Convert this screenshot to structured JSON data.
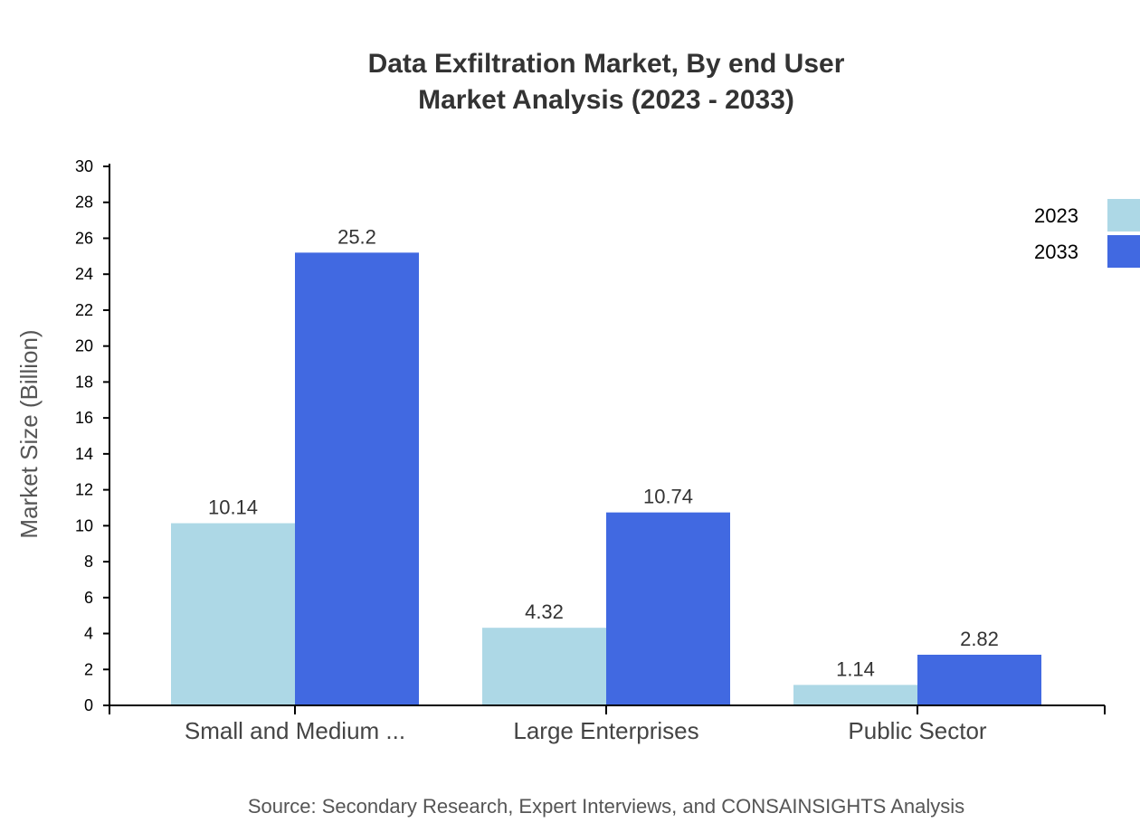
{
  "chart_data": {
    "type": "bar",
    "title": [
      "Data Exfiltration Market, By end User",
      "Market Analysis (2023 - 2033)"
    ],
    "xlabel": "",
    "ylabel": "Market Size (Billion)",
    "ylim": [
      0,
      30
    ],
    "yticks": [
      0,
      2,
      4,
      6,
      8,
      10,
      12,
      14,
      16,
      18,
      20,
      22,
      24,
      26,
      28,
      30
    ],
    "categories": [
      "Small and Medium ...",
      "Large Enterprises",
      "Public Sector"
    ],
    "series": [
      {
        "name": "2023",
        "color": "#ADD8E6",
        "values": [
          10.14,
          4.32,
          1.14
        ]
      },
      {
        "name": "2033",
        "color": "#4169E1",
        "values": [
          25.2,
          10.74,
          2.82
        ]
      }
    ],
    "data_labels": [
      [
        "10.14",
        "4.32",
        "1.14"
      ],
      [
        "25.2",
        "10.74",
        "2.82"
      ]
    ],
    "legend_position": "top-right",
    "grid": false,
    "source": "Source: Secondary Research, Expert Interviews, and CONSAINSIGHTS Analysis"
  }
}
